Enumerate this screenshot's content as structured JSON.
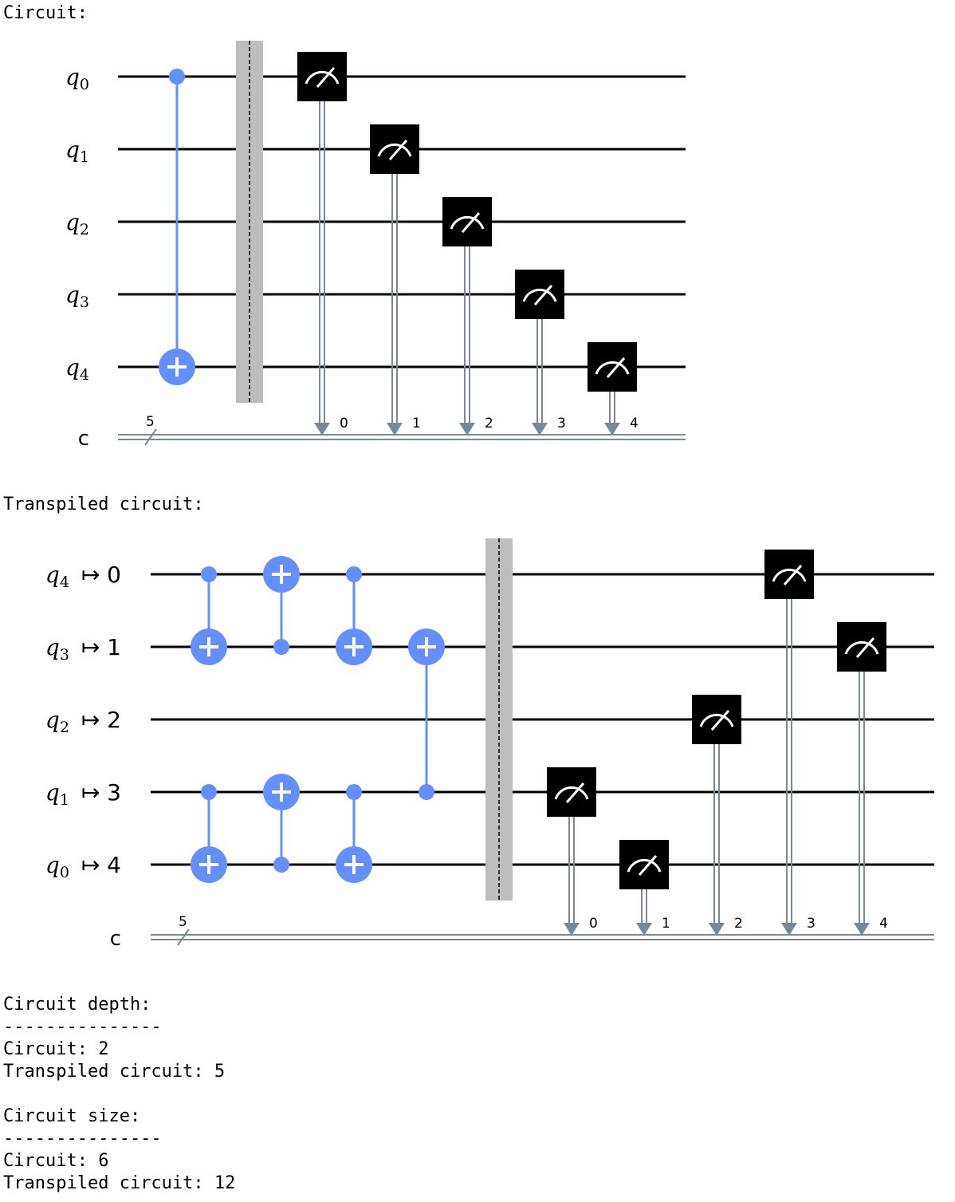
{
  "headings": {
    "circuit": "Circuit:",
    "transpiled": "Transpiled circuit:"
  },
  "colors": {
    "gate_blue": "#648fff",
    "wire": "#000000",
    "classical_wire": "#778899",
    "barrier": "#bdbdbd",
    "measure_box": "#000000"
  },
  "circuit1": {
    "qubits": [
      {
        "base": "q",
        "sub": "0"
      },
      {
        "base": "q",
        "sub": "1"
      },
      {
        "base": "q",
        "sub": "2"
      },
      {
        "base": "q",
        "sub": "3"
      },
      {
        "base": "q",
        "sub": "4"
      }
    ],
    "creg": {
      "label": "c",
      "size": "5"
    },
    "gates": [
      {
        "type": "cx",
        "control": 0,
        "target": 4,
        "col": 0
      },
      {
        "type": "barrier",
        "col": 1
      },
      {
        "type": "measure",
        "qubit": 0,
        "clbit": "0",
        "col": 2
      },
      {
        "type": "measure",
        "qubit": 1,
        "clbit": "1",
        "col": 3
      },
      {
        "type": "measure",
        "qubit": 2,
        "clbit": "2",
        "col": 4
      },
      {
        "type": "measure",
        "qubit": 3,
        "clbit": "3",
        "col": 5
      },
      {
        "type": "measure",
        "qubit": 4,
        "clbit": "4",
        "col": 6
      }
    ]
  },
  "circuit2": {
    "qubits": [
      {
        "base": "q",
        "sub": "4",
        "map": "↦ 0"
      },
      {
        "base": "q",
        "sub": "3",
        "map": "↦ 1"
      },
      {
        "base": "q",
        "sub": "2",
        "map": "↦ 2"
      },
      {
        "base": "q",
        "sub": "1",
        "map": "↦ 3"
      },
      {
        "base": "q",
        "sub": "0",
        "map": "↦ 4"
      }
    ],
    "creg": {
      "label": "c",
      "size": "5"
    },
    "gates": [
      {
        "type": "cx",
        "control": 0,
        "target": 1,
        "col": 0
      },
      {
        "type": "cx",
        "control": 3,
        "target": 4,
        "col": 0
      },
      {
        "type": "cx",
        "control": 1,
        "target": 0,
        "col": 1
      },
      {
        "type": "cx",
        "control": 4,
        "target": 3,
        "col": 1
      },
      {
        "type": "cx",
        "control": 0,
        "target": 1,
        "col": 2
      },
      {
        "type": "cx",
        "control": 3,
        "target": 4,
        "col": 2
      },
      {
        "type": "cx",
        "control": 3,
        "target": 1,
        "col": 3
      },
      {
        "type": "barrier",
        "col": 4
      },
      {
        "type": "measure",
        "qubit": 3,
        "clbit": "0",
        "col": 5
      },
      {
        "type": "measure",
        "qubit": 4,
        "clbit": "1",
        "col": 6
      },
      {
        "type": "measure",
        "qubit": 2,
        "clbit": "2",
        "col": 7
      },
      {
        "type": "measure",
        "qubit": 0,
        "clbit": "3",
        "col": 8
      },
      {
        "type": "measure",
        "qubit": 1,
        "clbit": "4",
        "col": 9
      }
    ]
  },
  "stats": {
    "depth_title": "Circuit depth:",
    "depth_rule": "---------------",
    "depth_circuit": "Circuit: 2",
    "depth_transpiled": "Transpiled circuit: 5",
    "size_title": "Circuit size:",
    "size_rule": "---------------",
    "size_circuit": "Circuit: 6",
    "size_transpiled": "Transpiled circuit: 12"
  }
}
